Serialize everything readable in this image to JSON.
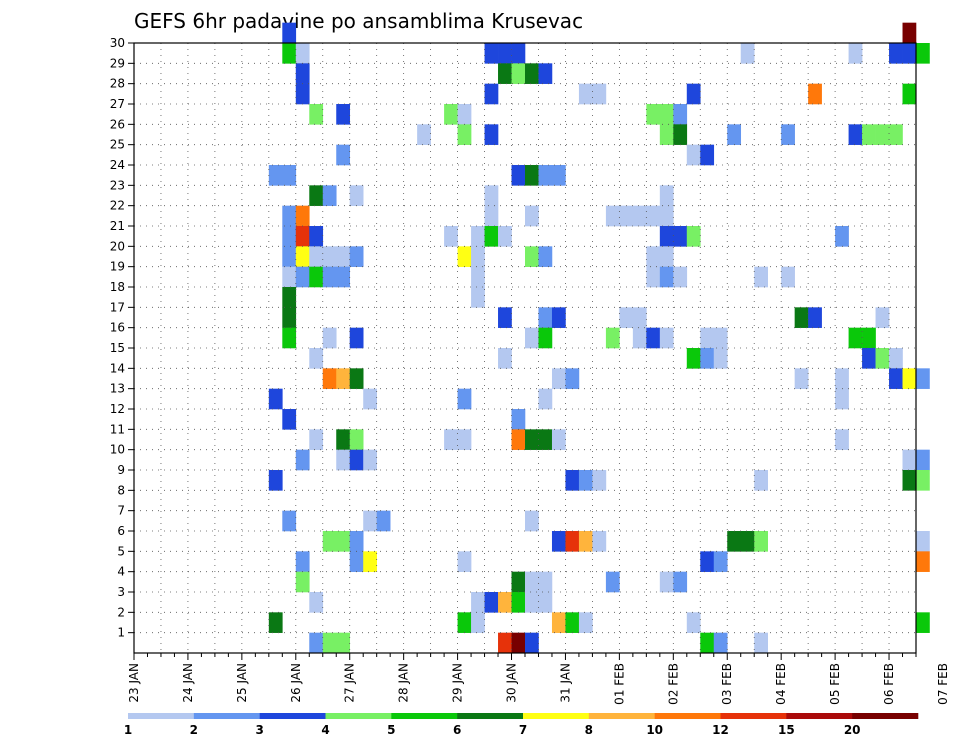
{
  "chart_data": {
    "type": "heatmap",
    "title": "GEFS 6hr padavine po ansamblima Krusevac",
    "xlabel": "",
    "ylabel": "",
    "x_tick_labels": [
      "23 JAN",
      "24 JAN",
      "25 JAN",
      "26 JAN",
      "27 JAN",
      "28 JAN",
      "29 JAN",
      "30 JAN",
      "31 JAN",
      "01 FEB",
      "02 FEB",
      "03 FEB",
      "04 FEB",
      "05 FEB",
      "06 FEB",
      "07 FEB"
    ],
    "y_tick_labels": [
      "1",
      "2",
      "3",
      "4",
      "5",
      "6",
      "7",
      "8",
      "9",
      "10",
      "11",
      "12",
      "13",
      "14",
      "15",
      "16",
      "17",
      "18",
      "19",
      "20",
      "21",
      "22",
      "23",
      "24",
      "25",
      "26",
      "27",
      "28",
      "29",
      "30"
    ],
    "x_range_steps": [
      0,
      58
    ],
    "y_range": [
      0,
      30
    ],
    "x_step_hours": 6,
    "grid": true,
    "legend_placement": "bottom",
    "legend": {
      "labels": [
        "1",
        "2",
        "3",
        "4",
        "5",
        "6",
        "7",
        "8",
        "10",
        "12",
        "15",
        "20"
      ],
      "colors": [
        "#b4c8f0",
        "#6496f0",
        "#1e46dc",
        "#78f064",
        "#0ac80a",
        "#0a7814",
        "#ffff14",
        "#ffb43c",
        "#ff780a",
        "#e6320a",
        "#aa0a0a",
        "#780000"
      ]
    },
    "cells": [
      [
        11,
        30,
        2
      ],
      [
        57,
        30,
        11
      ],
      [
        53,
        29,
        0
      ],
      [
        11,
        29,
        4
      ],
      [
        12,
        29,
        0
      ],
      [
        26,
        29,
        2
      ],
      [
        27,
        29,
        2
      ],
      [
        28,
        29,
        2
      ],
      [
        45,
        29,
        0
      ],
      [
        56,
        29,
        2
      ],
      [
        57,
        29,
        2
      ],
      [
        58,
        29,
        4
      ],
      [
        12,
        28,
        2
      ],
      [
        27,
        28,
        5
      ],
      [
        28,
        28,
        3
      ],
      [
        29,
        28,
        5
      ],
      [
        30,
        28,
        2
      ],
      [
        12,
        27,
        2
      ],
      [
        26,
        27,
        2
      ],
      [
        33,
        27,
        0
      ],
      [
        34,
        27,
        0
      ],
      [
        41,
        27,
        2
      ],
      [
        50,
        27,
        8
      ],
      [
        57,
        27,
        4
      ],
      [
        13,
        26,
        3
      ],
      [
        15,
        26,
        2
      ],
      [
        23,
        26,
        3
      ],
      [
        24,
        26,
        0
      ],
      [
        38,
        26,
        3
      ],
      [
        39,
        26,
        3
      ],
      [
        40,
        26,
        1
      ],
      [
        21,
        25,
        0
      ],
      [
        24,
        25,
        3
      ],
      [
        26,
        25,
        2
      ],
      [
        39,
        25,
        3
      ],
      [
        40,
        25,
        5
      ],
      [
        44,
        25,
        1
      ],
      [
        48,
        25,
        1
      ],
      [
        53,
        25,
        2
      ],
      [
        54,
        25,
        3
      ],
      [
        55,
        25,
        3
      ],
      [
        56,
        25,
        3
      ],
      [
        15,
        24,
        1
      ],
      [
        41,
        24,
        0
      ],
      [
        42,
        24,
        2
      ],
      [
        10,
        23,
        1
      ],
      [
        11,
        23,
        1
      ],
      [
        28,
        23,
        2
      ],
      [
        29,
        23,
        5
      ],
      [
        30,
        23,
        1
      ],
      [
        31,
        23,
        1
      ],
      [
        13,
        22,
        5
      ],
      [
        14,
        22,
        1
      ],
      [
        16,
        22,
        0
      ],
      [
        26,
        22,
        0
      ],
      [
        39,
        22,
        0
      ],
      [
        11,
        21,
        1
      ],
      [
        12,
        21,
        8
      ],
      [
        26,
        21,
        0
      ],
      [
        29,
        21,
        0
      ],
      [
        35,
        21,
        0
      ],
      [
        36,
        21,
        0
      ],
      [
        37,
        21,
        0
      ],
      [
        38,
        21,
        0
      ],
      [
        39,
        21,
        0
      ],
      [
        11,
        20,
        1
      ],
      [
        12,
        20,
        9
      ],
      [
        13,
        20,
        2
      ],
      [
        23,
        20,
        0
      ],
      [
        25,
        20,
        0
      ],
      [
        26,
        20,
        4
      ],
      [
        27,
        20,
        0
      ],
      [
        39,
        20,
        2
      ],
      [
        40,
        20,
        2
      ],
      [
        41,
        20,
        3
      ],
      [
        52,
        20,
        1
      ],
      [
        11,
        19,
        1
      ],
      [
        12,
        19,
        6
      ],
      [
        13,
        19,
        0
      ],
      [
        14,
        19,
        0
      ],
      [
        15,
        19,
        0
      ],
      [
        16,
        19,
        1
      ],
      [
        24,
        19,
        6
      ],
      [
        25,
        19,
        0
      ],
      [
        29,
        19,
        3
      ],
      [
        30,
        19,
        1
      ],
      [
        38,
        19,
        0
      ],
      [
        39,
        19,
        0
      ],
      [
        11,
        18,
        0
      ],
      [
        12,
        18,
        1
      ],
      [
        13,
        18,
        4
      ],
      [
        14,
        18,
        1
      ],
      [
        15,
        18,
        1
      ],
      [
        25,
        18,
        0
      ],
      [
        38,
        18,
        0
      ],
      [
        39,
        18,
        1
      ],
      [
        40,
        18,
        0
      ],
      [
        46,
        18,
        0
      ],
      [
        48,
        18,
        0
      ],
      [
        11,
        17,
        5
      ],
      [
        25,
        17,
        0
      ],
      [
        11,
        16,
        5
      ],
      [
        27,
        16,
        2
      ],
      [
        30,
        16,
        1
      ],
      [
        31,
        16,
        2
      ],
      [
        36,
        16,
        0
      ],
      [
        37,
        16,
        0
      ],
      [
        49,
        16,
        5
      ],
      [
        50,
        16,
        2
      ],
      [
        55,
        16,
        0
      ],
      [
        11,
        15,
        4
      ],
      [
        14,
        15,
        0
      ],
      [
        16,
        15,
        2
      ],
      [
        29,
        15,
        0
      ],
      [
        30,
        15,
        4
      ],
      [
        35,
        15,
        3
      ],
      [
        37,
        15,
        0
      ],
      [
        38,
        15,
        2
      ],
      [
        39,
        15,
        0
      ],
      [
        42,
        15,
        0
      ],
      [
        43,
        15,
        0
      ],
      [
        53,
        15,
        4
      ],
      [
        54,
        15,
        4
      ],
      [
        13,
        14,
        0
      ],
      [
        27,
        14,
        0
      ],
      [
        41,
        14,
        4
      ],
      [
        42,
        14,
        1
      ],
      [
        43,
        14,
        0
      ],
      [
        54,
        14,
        2
      ],
      [
        55,
        14,
        3
      ],
      [
        56,
        14,
        0
      ],
      [
        14,
        13,
        8
      ],
      [
        15,
        13,
        7
      ],
      [
        16,
        13,
        5
      ],
      [
        31,
        13,
        0
      ],
      [
        32,
        13,
        1
      ],
      [
        49,
        13,
        0
      ],
      [
        52,
        13,
        0
      ],
      [
        56,
        13,
        2
      ],
      [
        57,
        13,
        6
      ],
      [
        58,
        13,
        1
      ],
      [
        10,
        12,
        2
      ],
      [
        17,
        12,
        0
      ],
      [
        24,
        12,
        1
      ],
      [
        30,
        12,
        0
      ],
      [
        52,
        12,
        0
      ],
      [
        11,
        11,
        2
      ],
      [
        28,
        11,
        1
      ],
      [
        13,
        10,
        0
      ],
      [
        15,
        10,
        5
      ],
      [
        16,
        10,
        3
      ],
      [
        23,
        10,
        0
      ],
      [
        24,
        10,
        0
      ],
      [
        28,
        10,
        8
      ],
      [
        29,
        10,
        5
      ],
      [
        30,
        10,
        5
      ],
      [
        31,
        10,
        0
      ],
      [
        52,
        10,
        0
      ],
      [
        12,
        9,
        1
      ],
      [
        15,
        9,
        0
      ],
      [
        16,
        9,
        2
      ],
      [
        17,
        9,
        0
      ],
      [
        57,
        9,
        0
      ],
      [
        58,
        9,
        1
      ],
      [
        10,
        8,
        2
      ],
      [
        32,
        8,
        2
      ],
      [
        33,
        8,
        1
      ],
      [
        34,
        8,
        0
      ],
      [
        46,
        8,
        0
      ],
      [
        57,
        8,
        5
      ],
      [
        58,
        8,
        3
      ],
      [
        11,
        6,
        1
      ],
      [
        17,
        6,
        0
      ],
      [
        18,
        6,
        1
      ],
      [
        29,
        6,
        0
      ],
      [
        14,
        5,
        3
      ],
      [
        15,
        5,
        3
      ],
      [
        16,
        5,
        1
      ],
      [
        31,
        5,
        2
      ],
      [
        32,
        5,
        9
      ],
      [
        33,
        5,
        7
      ],
      [
        34,
        5,
        0
      ],
      [
        44,
        5,
        5
      ],
      [
        45,
        5,
        5
      ],
      [
        46,
        5,
        3
      ],
      [
        58,
        5,
        0
      ],
      [
        12,
        4,
        1
      ],
      [
        16,
        4,
        1
      ],
      [
        17,
        4,
        6
      ],
      [
        24,
        4,
        0
      ],
      [
        42,
        4,
        2
      ],
      [
        43,
        4,
        1
      ],
      [
        58,
        4,
        8
      ],
      [
        12,
        3,
        3
      ],
      [
        28,
        3,
        5
      ],
      [
        29,
        3,
        0
      ],
      [
        30,
        3,
        0
      ],
      [
        35,
        3,
        1
      ],
      [
        39,
        3,
        0
      ],
      [
        40,
        3,
        1
      ],
      [
        13,
        2,
        0
      ],
      [
        25,
        2,
        0
      ],
      [
        26,
        2,
        2
      ],
      [
        27,
        2,
        7
      ],
      [
        28,
        2,
        4
      ],
      [
        29,
        2,
        0
      ],
      [
        30,
        2,
        0
      ],
      [
        10,
        1,
        5
      ],
      [
        24,
        1,
        4
      ],
      [
        25,
        1,
        0
      ],
      [
        31,
        1,
        7
      ],
      [
        32,
        1,
        4
      ],
      [
        33,
        1,
        0
      ],
      [
        41,
        1,
        0
      ],
      [
        58,
        1,
        4
      ],
      [
        13,
        0,
        1
      ],
      [
        14,
        0,
        3
      ],
      [
        15,
        0,
        3
      ],
      [
        27,
        0,
        9
      ],
      [
        28,
        0,
        11
      ],
      [
        29,
        0,
        2
      ],
      [
        42,
        0,
        4
      ],
      [
        43,
        0,
        1
      ],
      [
        46,
        0,
        0
      ]
    ]
  }
}
